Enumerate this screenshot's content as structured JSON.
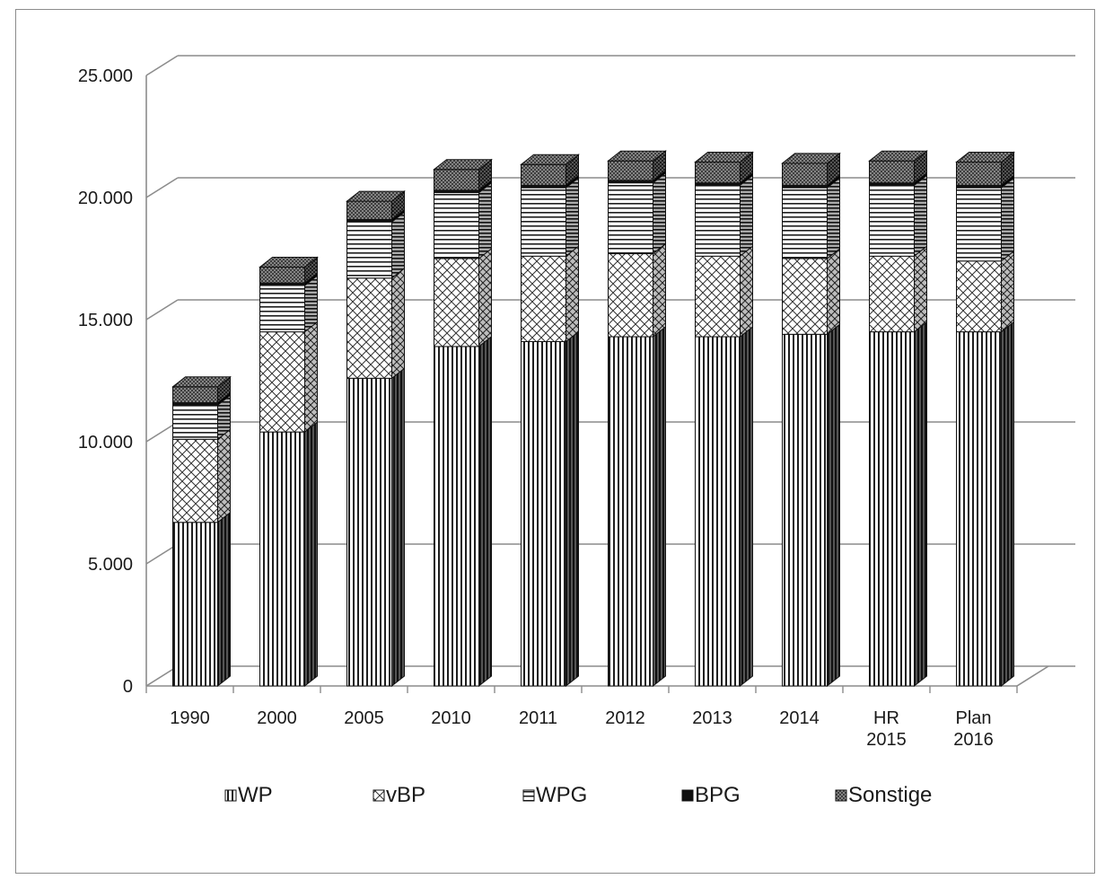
{
  "chart_data": {
    "type": "bar",
    "stacked": true,
    "three_d": true,
    "title": "",
    "xlabel": "",
    "ylabel": "",
    "ylim": [
      0,
      25000
    ],
    "yticks": [
      "0",
      "5.000",
      "10.000",
      "15.000",
      "20.000",
      "25.000"
    ],
    "grid": true,
    "legend_position": "bottom",
    "categories": [
      [
        "1990"
      ],
      [
        "2000"
      ],
      [
        "2005"
      ],
      [
        "2010"
      ],
      [
        "2011"
      ],
      [
        "2012"
      ],
      [
        "2013"
      ],
      [
        "2014"
      ],
      [
        "HR",
        "2015"
      ],
      [
        "Plan",
        "2016"
      ]
    ],
    "series": [
      {
        "name": "WP",
        "pattern": "vertical-lines",
        "values": [
          6700,
          10400,
          12600,
          13900,
          14100,
          14300,
          14300,
          14400,
          14500,
          14500
        ]
      },
      {
        "name": "vBP",
        "pattern": "crosshatch",
        "values": [
          3400,
          4100,
          4100,
          3600,
          3500,
          3400,
          3300,
          3100,
          3100,
          2900
        ]
      },
      {
        "name": "WPG",
        "pattern": "horizontal-lines",
        "values": [
          1400,
          1900,
          2300,
          2700,
          2800,
          2900,
          2900,
          2900,
          2900,
          3000
        ]
      },
      {
        "name": "BPG",
        "pattern": "solid",
        "values": [
          100,
          100,
          100,
          100,
          100,
          100,
          100,
          100,
          100,
          100
        ]
      },
      {
        "name": "Sonstige",
        "pattern": "dense-crosshatch",
        "values": [
          650,
          650,
          750,
          850,
          850,
          800,
          850,
          900,
          900,
          950
        ]
      }
    ]
  }
}
